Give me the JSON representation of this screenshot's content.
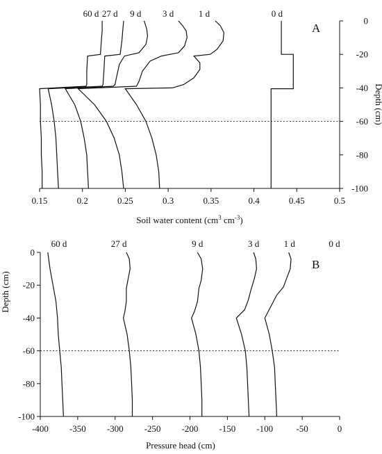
{
  "chart_data": [
    {
      "type": "line",
      "panel_label": "A",
      "xlabel": "Soil water content (cm",
      "xlabel_sup1": "3",
      "xlabel_mid": " cm",
      "xlabel_sup2": "-3",
      "xlabel_end": ")",
      "ylabel": "Depth (cm)",
      "xlim": [
        0.15,
        0.5
      ],
      "ylim": [
        -100,
        0
      ],
      "xticks": [
        "0.15",
        "0.2",
        "0.25",
        "0.3",
        "0.35",
        "0.4",
        "0.45",
        "0.5"
      ],
      "yticks": [
        "0",
        "-20",
        "-40",
        "-60",
        "-80",
        "-100"
      ],
      "reference_line": {
        "depth": -60,
        "style": "dotted"
      },
      "series": [
        {
          "name": "60 d",
          "points": [
            [
              0.223,
              0
            ],
            [
              0.223,
              -6
            ],
            [
              0.222,
              -12
            ],
            [
              0.221,
              -20
            ],
            [
              0.206,
              -21
            ],
            [
              0.205,
              -30
            ],
            [
              0.205,
              -38
            ],
            [
              0.204,
              -39
            ],
            [
              0.15,
              -40.5
            ],
            [
              0.151,
              -50
            ],
            [
              0.151,
              -60
            ],
            [
              0.152,
              -70
            ],
            [
              0.152,
              -80
            ],
            [
              0.153,
              -90
            ],
            [
              0.153,
              -100
            ]
          ]
        },
        {
          "name": "27 d",
          "points": [
            [
              0.248,
              0
            ],
            [
              0.247,
              -6
            ],
            [
              0.246,
              -12
            ],
            [
              0.244,
              -20
            ],
            [
              0.226,
              -21
            ],
            [
              0.225,
              -30
            ],
            [
              0.224,
              -38
            ],
            [
              0.223,
              -39
            ],
            [
              0.16,
              -40.5
            ],
            [
              0.164,
              -50
            ],
            [
              0.167,
              -60
            ],
            [
              0.169,
              -70
            ],
            [
              0.17,
              -80
            ],
            [
              0.171,
              -90
            ],
            [
              0.172,
              -100
            ]
          ]
        },
        {
          "name": "9 d",
          "points": [
            [
              0.272,
              0
            ],
            [
              0.275,
              -5
            ],
            [
              0.276,
              -9
            ],
            [
              0.274,
              -14
            ],
            [
              0.266,
              -19
            ],
            [
              0.249,
              -21
            ],
            [
              0.243,
              -26
            ],
            [
              0.24,
              -33
            ],
            [
              0.238,
              -38
            ],
            [
              0.236,
              -39
            ],
            [
              0.18,
              -40.5
            ],
            [
              0.191,
              -50
            ],
            [
              0.198,
              -60
            ],
            [
              0.202,
              -70
            ],
            [
              0.205,
              -80
            ],
            [
              0.206,
              -90
            ],
            [
              0.207,
              -100
            ]
          ]
        },
        {
          "name": "3 d",
          "points": [
            [
              0.312,
              0
            ],
            [
              0.317,
              -3
            ],
            [
              0.321,
              -6
            ],
            [
              0.322,
              -10
            ],
            [
              0.319,
              -15
            ],
            [
              0.312,
              -19
            ],
            [
              0.292,
              -21
            ],
            [
              0.279,
              -24
            ],
            [
              0.27,
              -30
            ],
            [
              0.266,
              -36
            ],
            [
              0.263,
              -39
            ],
            [
              0.195,
              -40.5
            ],
            [
              0.214,
              -50
            ],
            [
              0.228,
              -60
            ],
            [
              0.237,
              -70
            ],
            [
              0.243,
              -80
            ],
            [
              0.246,
              -90
            ],
            [
              0.248,
              -100
            ]
          ]
        },
        {
          "name": "1 d",
          "points": [
            [
              0.355,
              0
            ],
            [
              0.361,
              -3
            ],
            [
              0.365,
              -7
            ],
            [
              0.364,
              -12
            ],
            [
              0.357,
              -17
            ],
            [
              0.349,
              -20
            ],
            [
              0.33,
              -21
            ],
            [
              0.337,
              -25
            ],
            [
              0.337,
              -29
            ],
            [
              0.33,
              -34
            ],
            [
              0.318,
              -38
            ],
            [
              0.305,
              -40
            ],
            [
              0.25,
              -40.5
            ],
            [
              0.263,
              -50
            ],
            [
              0.274,
              -60
            ],
            [
              0.281,
              -70
            ],
            [
              0.286,
              -80
            ],
            [
              0.289,
              -90
            ],
            [
              0.29,
              -100
            ]
          ]
        },
        {
          "name": "0 d",
          "points": [
            [
              0.432,
              0
            ],
            [
              0.432,
              -20
            ],
            [
              0.446,
              -20
            ],
            [
              0.446,
              -40.5
            ],
            [
              0.42,
              -40.5
            ],
            [
              0.42,
              -100
            ]
          ]
        }
      ],
      "label_order": [
        "60 d",
        "27 d",
        "9 d",
        "3 d",
        "1 d",
        "0 d"
      ]
    },
    {
      "type": "line",
      "panel_label": "B",
      "xlabel": "Pressure head (cm)",
      "ylabel": "Depth (cm)",
      "xlim": [
        -400,
        0
      ],
      "ylim": [
        -100,
        0
      ],
      "xticks": [
        "-400",
        "-350",
        "-300",
        "-250",
        "-200",
        "-150",
        "-100",
        "-50",
        "0"
      ],
      "yticks": [
        "0",
        "-20",
        "-40",
        "-60",
        "-80",
        "-100"
      ],
      "reference_line": {
        "depth": -60,
        "style": "dotted"
      },
      "series": [
        {
          "name": "60 d",
          "points": [
            [
              -390,
              0
            ],
            [
              -387,
              -10
            ],
            [
              -383,
              -20
            ],
            [
              -379,
              -30
            ],
            [
              -377,
              -40
            ],
            [
              -376,
              -50
            ],
            [
              -374,
              -60
            ],
            [
              -372,
              -70
            ],
            [
              -371,
              -80
            ],
            [
              -370,
              -90
            ],
            [
              -369,
              -100
            ]
          ]
        },
        {
          "name": "27 d",
          "points": [
            [
              -285,
              0
            ],
            [
              -281,
              -4
            ],
            [
              -280,
              -10
            ],
            [
              -283,
              -17
            ],
            [
              -285,
              -22
            ],
            [
              -285,
              -30
            ],
            [
              -287,
              -36
            ],
            [
              -289,
              -40
            ],
            [
              -284,
              -50
            ],
            [
              -281,
              -60
            ],
            [
              -279,
              -70
            ],
            [
              -278,
              -80
            ],
            [
              -277,
              -90
            ],
            [
              -277,
              -100
            ]
          ]
        },
        {
          "name": "9 d",
          "points": [
            [
              -190,
              0
            ],
            [
              -185,
              -4
            ],
            [
              -183,
              -10
            ],
            [
              -185,
              -17
            ],
            [
              -188,
              -22
            ],
            [
              -190,
              -30
            ],
            [
              -194,
              -36
            ],
            [
              -198,
              -40
            ],
            [
              -192,
              -50
            ],
            [
              -188,
              -60
            ],
            [
              -186,
              -70
            ],
            [
              -185,
              -80
            ],
            [
              -184,
              -90
            ],
            [
              -184,
              -100
            ]
          ]
        },
        {
          "name": "3 d",
          "points": [
            [
              -115,
              0
            ],
            [
              -112,
              -4
            ],
            [
              -111,
              -10
            ],
            [
              -114,
              -16
            ],
            [
              -118,
              -22
            ],
            [
              -122,
              -29
            ],
            [
              -127,
              -35
            ],
            [
              -138,
              -40
            ],
            [
              -131,
              -50
            ],
            [
              -126,
              -60
            ],
            [
              -124,
              -70
            ],
            [
              -123,
              -80
            ],
            [
              -122,
              -90
            ],
            [
              -121,
              -100
            ]
          ]
        },
        {
          "name": "1 d",
          "points": [
            [
              -68,
              0
            ],
            [
              -65,
              -4
            ],
            [
              -66,
              -10
            ],
            [
              -71,
              -16
            ],
            [
              -75,
              -21
            ],
            [
              -84,
              -26
            ],
            [
              -92,
              -33
            ],
            [
              -100,
              -40
            ],
            [
              -94,
              -50
            ],
            [
              -90,
              -60
            ],
            [
              -87,
              -70
            ],
            [
              -86,
              -80
            ],
            [
              -85,
              -90
            ],
            [
              -84,
              -100
            ]
          ]
        }
      ],
      "label_order": [
        "60 d",
        "27 d",
        "9 d",
        "3 d",
        "1 d",
        "0 d"
      ]
    }
  ]
}
